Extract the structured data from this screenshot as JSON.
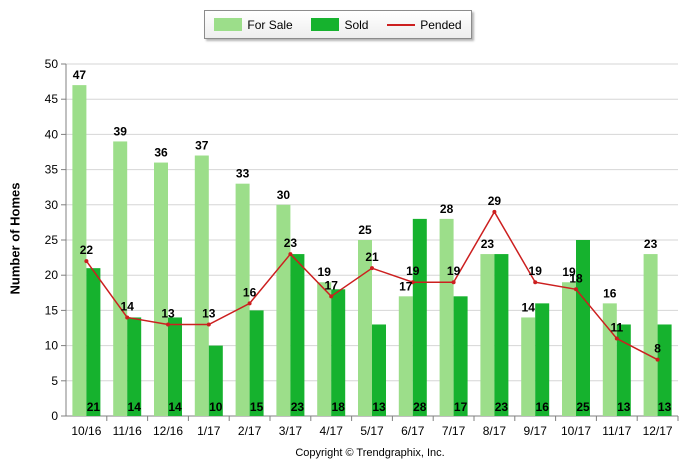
{
  "chart_data": {
    "type": "bar",
    "categories": [
      "10/16",
      "11/16",
      "12/16",
      "1/17",
      "2/17",
      "3/17",
      "4/17",
      "5/17",
      "6/17",
      "7/17",
      "8/17",
      "9/17",
      "10/17",
      "11/17",
      "12/17"
    ],
    "series": [
      {
        "name": "For Sale",
        "kind": "bar",
        "color": "#9cde8a",
        "values": [
          47,
          39,
          36,
          37,
          33,
          30,
          19,
          25,
          17,
          28,
          23,
          14,
          19,
          16,
          23
        ]
      },
      {
        "name": "Sold",
        "kind": "bar",
        "color": "#16b22e",
        "values": [
          21,
          14,
          14,
          10,
          15,
          23,
          18,
          13,
          28,
          17,
          23,
          16,
          25,
          13,
          13
        ]
      },
      {
        "name": "Pended",
        "kind": "line",
        "color": "#cc1f1f",
        "values": [
          22,
          14,
          13,
          13,
          16,
          23,
          17,
          21,
          19,
          19,
          29,
          19,
          18,
          11,
          8
        ]
      }
    ],
    "ylabel": "Number of Homes",
    "xlabel": "",
    "ylim": [
      0,
      50
    ],
    "yticks": [
      0,
      5,
      10,
      15,
      20,
      25,
      30,
      35,
      40,
      45,
      50
    ],
    "grid": true,
    "legend_position": "top-center"
  },
  "legend": {
    "for_sale": "For Sale",
    "sold": "Sold",
    "pended": "Pended"
  },
  "footer": {
    "copyright": "Copyright © Trendgraphix, Inc."
  }
}
